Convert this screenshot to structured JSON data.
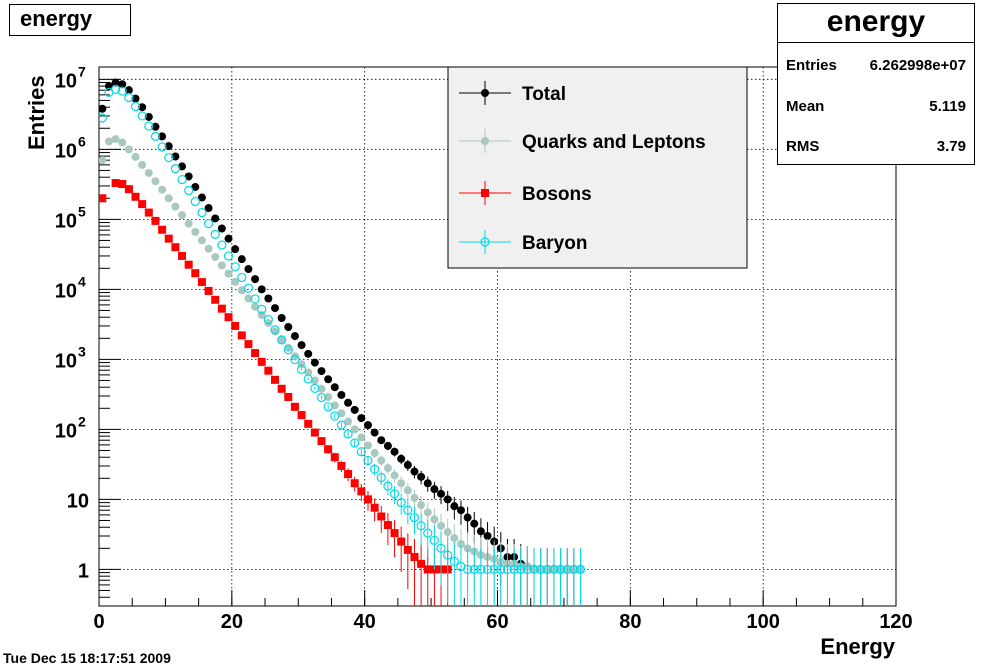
{
  "title_box": "energy",
  "stats": {
    "title": "energy",
    "rows": [
      {
        "key": "Entries",
        "value": "6.262998e+07"
      },
      {
        "key": "Mean",
        "value": "5.119"
      },
      {
        "key": "RMS",
        "value": "3.79"
      }
    ]
  },
  "footer_date": "Tue Dec 15 18:17:51 2009",
  "chart_data": {
    "type": "scatter",
    "xlabel": "Energy",
    "ylabel": "Entries",
    "xlim": [
      0,
      120
    ],
    "ylim": [
      0.3,
      15000000
    ],
    "yscale": "log",
    "grid": true,
    "legend_position": "top-right",
    "x_ticks": [
      "0",
      "20",
      "40",
      "60",
      "80",
      "100",
      "120"
    ],
    "y_ticks": [
      {
        "value": 1,
        "base": "1",
        "exp": ""
      },
      {
        "value": 10,
        "base": "10",
        "exp": ""
      },
      {
        "value": 100,
        "base": "10",
        "exp": "2"
      },
      {
        "value": 1000,
        "base": "10",
        "exp": "3"
      },
      {
        "value": 10000,
        "base": "10",
        "exp": "4"
      },
      {
        "value": 100000,
        "base": "10",
        "exp": "5"
      },
      {
        "value": 1000000,
        "base": "10",
        "exp": "6"
      },
      {
        "value": 10000000,
        "base": "10",
        "exp": "7"
      }
    ],
    "series": [
      {
        "name": "Total",
        "color": "#000000",
        "marker": "filled-circle",
        "x": [
          0,
          1,
          2,
          3,
          4,
          5,
          6,
          7,
          8,
          9,
          10,
          11,
          12,
          13,
          14,
          15,
          16,
          17,
          18,
          19,
          20,
          21,
          22,
          23,
          24,
          25,
          26,
          27,
          28,
          29,
          30,
          31,
          32,
          33,
          34,
          35,
          36,
          37,
          38,
          39,
          40,
          41,
          42,
          43,
          44,
          45,
          46,
          47,
          48,
          49,
          50,
          51,
          52,
          53,
          54,
          55,
          56,
          57,
          58,
          59,
          60,
          61,
          62,
          63,
          64,
          65,
          66,
          67,
          68,
          69,
          70,
          71,
          72
        ],
        "y": [
          3800000,
          8000000,
          9000000,
          8500000,
          7000000,
          5300000,
          4000000,
          2900000,
          2100000,
          1530000,
          1110000,
          790000,
          570000,
          410000,
          290000,
          205000,
          145000,
          103000,
          74000,
          53000,
          37500,
          27000,
          19500,
          14000,
          10000,
          7400,
          5400,
          3900,
          2900,
          2150,
          1600,
          1200,
          900,
          680,
          520,
          400,
          310,
          240,
          190,
          145,
          115,
          90,
          70,
          58,
          48,
          38,
          31,
          25,
          21,
          17,
          14,
          12,
          10,
          8,
          7,
          5.5,
          4.5,
          3.5,
          3,
          2.5,
          2,
          1.5,
          1.5,
          1.2,
          1.1,
          1,
          1,
          1,
          1,
          1,
          1,
          1,
          1
        ]
      },
      {
        "name": "Quarks and Leptons",
        "color": "#a8c8c0",
        "marker": "filled-circle",
        "x": [
          0,
          1,
          2,
          3,
          4,
          5,
          6,
          7,
          8,
          9,
          10,
          11,
          12,
          13,
          14,
          15,
          16,
          17,
          18,
          19,
          20,
          21,
          22,
          23,
          24,
          25,
          26,
          27,
          28,
          29,
          30,
          31,
          32,
          33,
          34,
          35,
          36,
          37,
          38,
          39,
          40,
          41,
          42,
          43,
          44,
          45,
          46,
          47,
          48,
          49,
          50,
          51,
          52,
          53,
          54,
          55,
          56,
          57,
          58,
          59,
          60,
          61,
          62,
          63,
          64,
          65,
          66,
          67,
          68,
          69,
          70,
          71,
          72
        ],
        "y": [
          700000,
          1300000,
          1400000,
          1250000,
          1000000,
          780000,
          600000,
          460000,
          350000,
          265000,
          200000,
          152000,
          115000,
          87000,
          66000,
          50000,
          38000,
          29000,
          22000,
          16800,
          12800,
          9700,
          7400,
          5650,
          4300,
          3300,
          2500,
          1900,
          1460,
          1110,
          850,
          650,
          500,
          380,
          290,
          220,
          170,
          130,
          100,
          77,
          59,
          46,
          36,
          28,
          22,
          17,
          13.5,
          10.5,
          8.3,
          6.5,
          5.2,
          4.2,
          3.4,
          2.8,
          2.3,
          2,
          1.8,
          1.6,
          1.5,
          1.4,
          1.3,
          1.2,
          1.2,
          1.1,
          1.1,
          1,
          1,
          1,
          1,
          1,
          1,
          1,
          1
        ]
      },
      {
        "name": "Bosons",
        "color": "#ff0000",
        "marker": "filled-square",
        "x": [
          0,
          2,
          3,
          4,
          5,
          6,
          7,
          8,
          9,
          10,
          11,
          12,
          13,
          14,
          15,
          16,
          17,
          18,
          19,
          20,
          21,
          22,
          23,
          24,
          25,
          26,
          27,
          28,
          29,
          30,
          31,
          32,
          33,
          34,
          35,
          36,
          37,
          38,
          39,
          40,
          41,
          42,
          43,
          44,
          45,
          46,
          47,
          48,
          49,
          50,
          51,
          52
        ],
        "y": [
          200000,
          330000,
          320000,
          270000,
          210000,
          165000,
          125000,
          95000,
          71000,
          53000,
          40000,
          30000,
          22500,
          17000,
          12700,
          9500,
          7100,
          5300,
          4000,
          3000,
          2200,
          1650,
          1230,
          920,
          690,
          510,
          380,
          290,
          210,
          160,
          120,
          90,
          68,
          52,
          40,
          30,
          23,
          17,
          13,
          10,
          7.6,
          5.7,
          4.3,
          3.3,
          2.5,
          1.9,
          1.5,
          1.2,
          1,
          1,
          1,
          1
        ]
      },
      {
        "name": "Baryon",
        "color": "#00d8e8",
        "marker": "open-circle",
        "x": [
          0,
          1,
          2,
          3,
          4,
          5,
          6,
          7,
          8,
          9,
          10,
          11,
          12,
          13,
          14,
          15,
          16,
          17,
          18,
          19,
          20,
          21,
          22,
          23,
          24,
          25,
          26,
          27,
          28,
          29,
          30,
          31,
          32,
          33,
          34,
          35,
          36,
          37,
          38,
          39,
          40,
          41,
          42,
          43,
          44,
          45,
          46,
          47,
          48,
          49,
          50,
          51,
          52,
          53,
          54,
          55,
          56,
          57,
          58,
          59,
          60,
          61,
          62,
          63,
          64,
          65,
          66,
          67,
          68,
          69,
          70,
          71,
          72
        ],
        "y": [
          2800000,
          6500000,
          7200000,
          6800000,
          5500000,
          4100000,
          3000000,
          2150000,
          1530000,
          1080000,
          760000,
          530000,
          370000,
          258000,
          180000,
          125000,
          87000,
          61000,
          43000,
          30000,
          21000,
          14800,
          10400,
          7300,
          5200,
          3700,
          2650,
          1900,
          1370,
          990,
          720,
          525,
          385,
          285,
          210,
          155,
          115,
          86,
          64,
          48,
          36,
          27,
          20.5,
          15.5,
          12,
          9,
          7,
          5.5,
          4.2,
          3.3,
          2.6,
          2,
          1.6,
          1.3,
          1.1,
          1,
          1,
          1,
          1,
          1,
          1,
          1,
          1,
          1,
          1,
          1,
          1,
          1,
          1,
          1,
          1,
          1,
          1
        ]
      }
    ]
  }
}
